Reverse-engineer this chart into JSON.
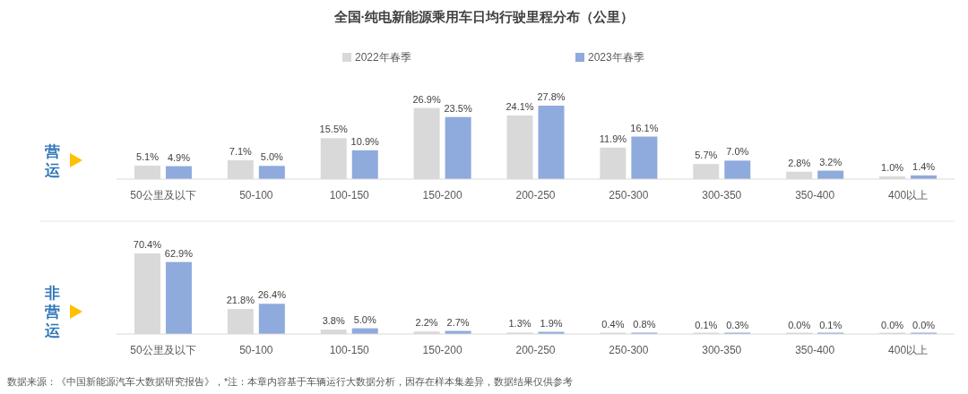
{
  "chart_data": [
    {
      "type": "bar",
      "title": "全国·纯电新能源乘用车日均行驶里程分布（公里）",
      "ylabel": "营运",
      "legend": "top",
      "categories": [
        "50公里及以下",
        "50-100",
        "100-150",
        "150-200",
        "200-250",
        "250-300",
        "300-350",
        "350-400",
        "400以上"
      ],
      "series": [
        {
          "name": "2022年春季",
          "color": "#d9d9d9",
          "values": [
            5.1,
            7.1,
            15.5,
            26.9,
            24.1,
            11.9,
            5.7,
            2.8,
            1.0
          ],
          "value_labels": [
            "5.1%",
            "7.1%",
            "15.5%",
            "26.9%",
            "24.1%",
            "11.9%",
            "5.7%",
            "2.8%",
            "1.0%"
          ]
        },
        {
          "name": "2023年春季",
          "color": "#8faadc",
          "values": [
            4.9,
            5.0,
            10.9,
            23.5,
            27.8,
            16.1,
            7.0,
            3.2,
            1.4
          ],
          "value_labels": [
            "4.9%",
            "5.0%",
            "10.9%",
            "23.5%",
            "27.8%",
            "16.1%",
            "7.0%",
            "3.2%",
            "1.4%"
          ]
        }
      ]
    },
    {
      "type": "bar",
      "ylabel": "非营运",
      "categories": [
        "50公里及以下",
        "50-100",
        "100-150",
        "150-200",
        "200-250",
        "250-300",
        "300-350",
        "350-400",
        "400以上"
      ],
      "series": [
        {
          "color": "#d9d9d9",
          "values": [
            70.4,
            21.8,
            3.8,
            2.2,
            1.3,
            0.4,
            0.1,
            0.0,
            0.0
          ],
          "value_labels": [
            "70.4%",
            "21.8%",
            "3.8%",
            "2.2%",
            "1.3%",
            "0.4%",
            "0.1%",
            "0.0%",
            "0.0%"
          ]
        },
        {
          "color": "#8faadc",
          "values": [
            62.9,
            26.4,
            5.0,
            2.7,
            1.9,
            0.8,
            0.3,
            0.1,
            0.0
          ],
          "value_labels": [
            "62.9%",
            "26.4%",
            "5.0%",
            "2.7%",
            "1.9%",
            "0.8%",
            "0.3%",
            "0.1%",
            "0.0%"
          ]
        }
      ],
      "annotations": [
        "数据来源：《中国新能源汽车大数据研究报告》，*注：本章内容基于车辆运行大数据分析，因存在样本集差异，数据结果仅供参考"
      ]
    }
  ]
}
